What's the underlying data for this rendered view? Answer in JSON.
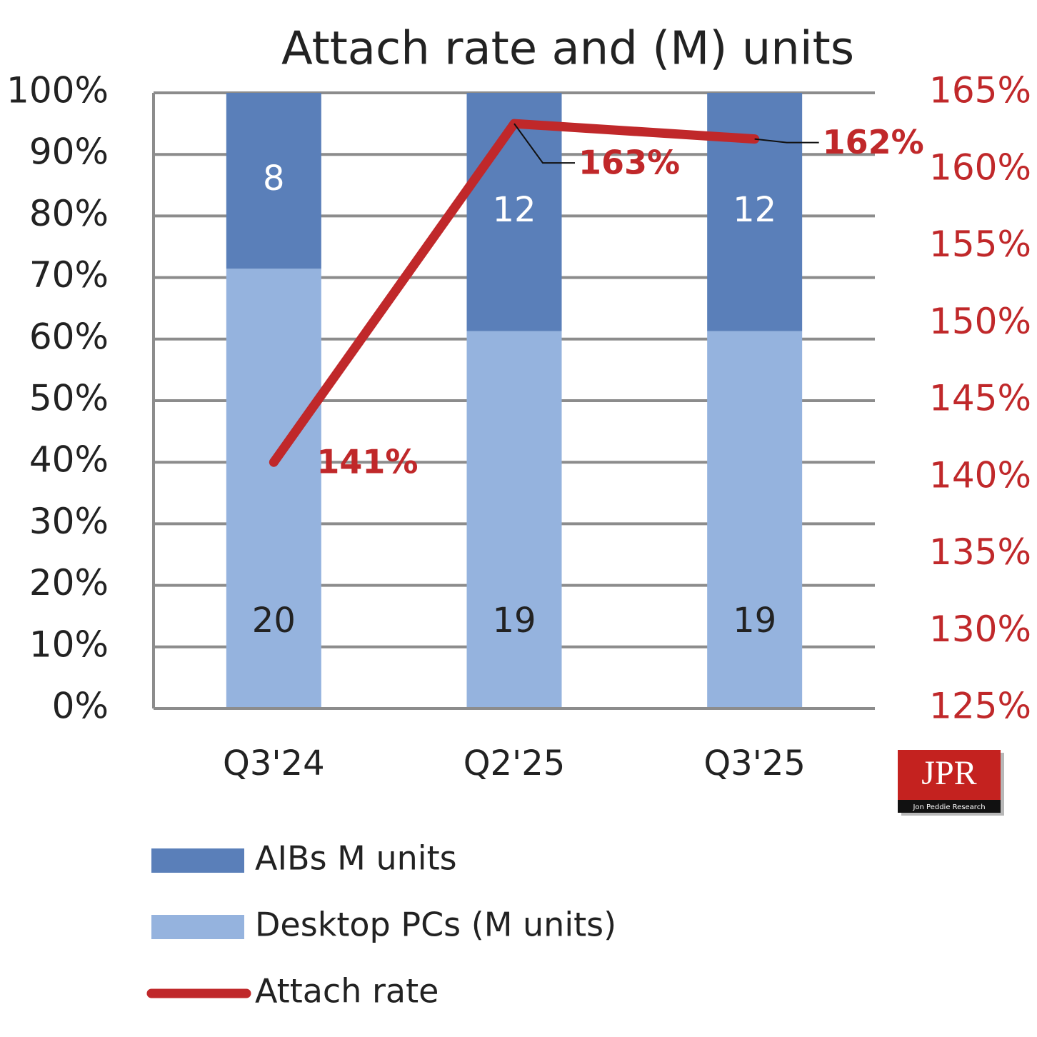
{
  "chart_data": {
    "type": "bar",
    "stacked": "percent",
    "title": "Attach rate and (M) units",
    "categories": [
      "Q3'24",
      "Q2'25",
      "Q3'25"
    ],
    "series": [
      {
        "name": "AIBs M units",
        "color": "#5a7fb9",
        "values": [
          8,
          12,
          12
        ]
      },
      {
        "name": "Desktop PCs (M units)",
        "color": "#95b3de",
        "values": [
          20,
          19,
          19
        ]
      },
      {
        "name": "Attach rate",
        "type": "line",
        "axis": "y2",
        "color": "#c0282a",
        "values": [
          141,
          163,
          162
        ],
        "value_labels": [
          "141%",
          "163%",
          "162%"
        ]
      }
    ],
    "ylim": [
      0,
      100
    ],
    "yticks": [
      {
        "value": 0,
        "label": "0%"
      },
      {
        "value": 10,
        "label": "10%"
      },
      {
        "value": 20,
        "label": "20%"
      },
      {
        "value": 30,
        "label": "30%"
      },
      {
        "value": 40,
        "label": "40%"
      },
      {
        "value": 50,
        "label": "50%"
      },
      {
        "value": 60,
        "label": "60%"
      },
      {
        "value": 70,
        "label": "70%"
      },
      {
        "value": 80,
        "label": "80%"
      },
      {
        "value": 90,
        "label": "90%"
      },
      {
        "value": 100,
        "label": "100%"
      }
    ],
    "y2lim": [
      125,
      165
    ],
    "y2ticks": [
      {
        "value": 125,
        "label": "125%"
      },
      {
        "value": 130,
        "label": "130%"
      },
      {
        "value": 135,
        "label": "135%"
      },
      {
        "value": 140,
        "label": "140%"
      },
      {
        "value": 145,
        "label": "145%"
      },
      {
        "value": 150,
        "label": "150%"
      },
      {
        "value": 155,
        "label": "155%"
      },
      {
        "value": 160,
        "label": "160%"
      },
      {
        "value": 165,
        "label": "165%"
      }
    ],
    "grid": true,
    "legend": "bottom"
  },
  "logo": {
    "text": "JPR",
    "subtitle": "Jon Peddie Research"
  }
}
